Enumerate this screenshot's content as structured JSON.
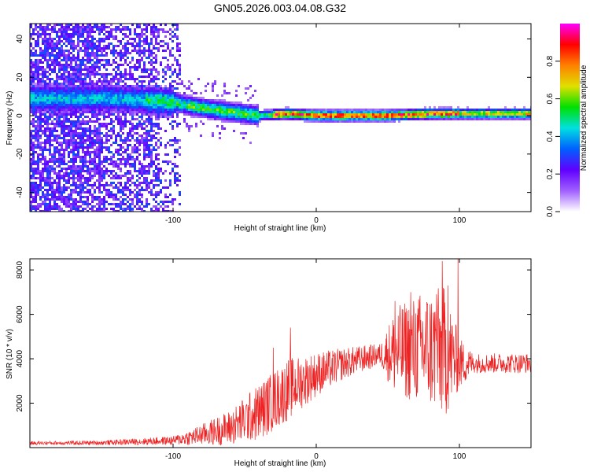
{
  "title": "GN05.2026.003.04.08.G32",
  "chart_data": [
    {
      "type": "heatmap",
      "name": "spectrogram",
      "xlabel": "Height of straight line (km)",
      "ylabel": "Frequency (Hz)",
      "xlim": [
        -200,
        150
      ],
      "ylim": [
        -50,
        48
      ],
      "xticks": [
        {
          "v": -100,
          "label": "-100"
        },
        {
          "v": 0,
          "label": "0"
        },
        {
          "v": 100,
          "label": "100"
        }
      ],
      "yticks": [
        {
          "v": 40,
          "label": "40"
        },
        {
          "v": 20,
          "label": "20"
        },
        {
          "v": 0,
          "label": "0"
        },
        {
          "v": -20,
          "label": "-20"
        },
        {
          "v": -40,
          "label": "-40"
        }
      ],
      "ridge": [
        {
          "x": -140,
          "f": 9
        },
        {
          "x": -100,
          "f": 7
        },
        {
          "x": -80,
          "f": 4
        },
        {
          "x": -60,
          "f": 2
        },
        {
          "x": -40,
          "f": 0
        },
        {
          "x": -20,
          "f": 1
        },
        {
          "x": 0,
          "f": 0
        },
        {
          "x": 50,
          "f": 0
        },
        {
          "x": 80,
          "f": 1
        },
        {
          "x": 100,
          "f": 1
        },
        {
          "x": 150,
          "f": 1
        }
      ],
      "colorbar": {
        "label": "Normalized spectral amplitude",
        "range": [
          0,
          1
        ],
        "ticks": [
          {
            "v": 0.0,
            "label": "0.0"
          },
          {
            "v": 0.2,
            "label": "0.2"
          },
          {
            "v": 0.4,
            "label": "0.4"
          },
          {
            "v": 0.6,
            "label": "0.6"
          },
          {
            "v": 0.8,
            "label": "0.8"
          }
        ],
        "colors": [
          "#ffffff",
          "#a060ff",
          "#6000ff",
          "#0060ff",
          "#00e0e0",
          "#00e000",
          "#e0e000",
          "#ff8000",
          "#ff0000",
          "#ff00ff"
        ]
      }
    },
    {
      "type": "line",
      "name": "snr",
      "xlabel": "Height of straight line (km)",
      "ylabel": "SNR (10 * v/v)",
      "xlim": [
        -200,
        150
      ],
      "ylim": [
        0,
        8500
      ],
      "xticks": [
        {
          "v": -100,
          "label": "-100"
        },
        {
          "v": 0,
          "label": "0"
        },
        {
          "v": 100,
          "label": "100"
        }
      ],
      "yticks": [
        {
          "v": 2000,
          "label": "2000"
        },
        {
          "v": 4000,
          "label": "4000"
        },
        {
          "v": 6000,
          "label": "6000"
        },
        {
          "v": 8000,
          "label": "8000"
        }
      ],
      "color": "#ee2222",
      "series": [
        {
          "name": "SNR",
          "trend": [
            {
              "x": -200,
              "mean": 200,
              "amp": 80
            },
            {
              "x": -150,
              "mean": 220,
              "amp": 100
            },
            {
              "x": -100,
              "mean": 320,
              "amp": 200
            },
            {
              "x": -85,
              "mean": 500,
              "amp": 400
            },
            {
              "x": -60,
              "mean": 900,
              "amp": 800
            },
            {
              "x": -40,
              "mean": 1600,
              "amp": 1300
            },
            {
              "x": -20,
              "mean": 2600,
              "amp": 1400
            },
            {
              "x": 0,
              "mean": 3300,
              "amp": 1000
            },
            {
              "x": 20,
              "mean": 3800,
              "amp": 700
            },
            {
              "x": 45,
              "mean": 4200,
              "amp": 500
            },
            {
              "x": 55,
              "mean": 4300,
              "amp": 2000
            },
            {
              "x": 75,
              "mean": 4500,
              "amp": 2600
            },
            {
              "x": 90,
              "mean": 4300,
              "amp": 3000
            },
            {
              "x": 100,
              "mean": 3800,
              "amp": 1200
            },
            {
              "x": 110,
              "mean": 3800,
              "amp": 450
            },
            {
              "x": 150,
              "mean": 3800,
              "amp": 450
            }
          ],
          "peaks": [
            {
              "x": 88,
              "y": 8400
            },
            {
              "x": 99,
              "y": 8500
            },
            {
              "x": 84,
              "y": 6900
            },
            {
              "x": 66,
              "y": 7000
            },
            {
              "x": 92,
              "y": 7300
            },
            {
              "x": 55,
              "y": 6600
            },
            {
              "x": -18,
              "y": 5400
            },
            {
              "x": -30,
              "y": 4500
            }
          ]
        }
      ]
    }
  ]
}
